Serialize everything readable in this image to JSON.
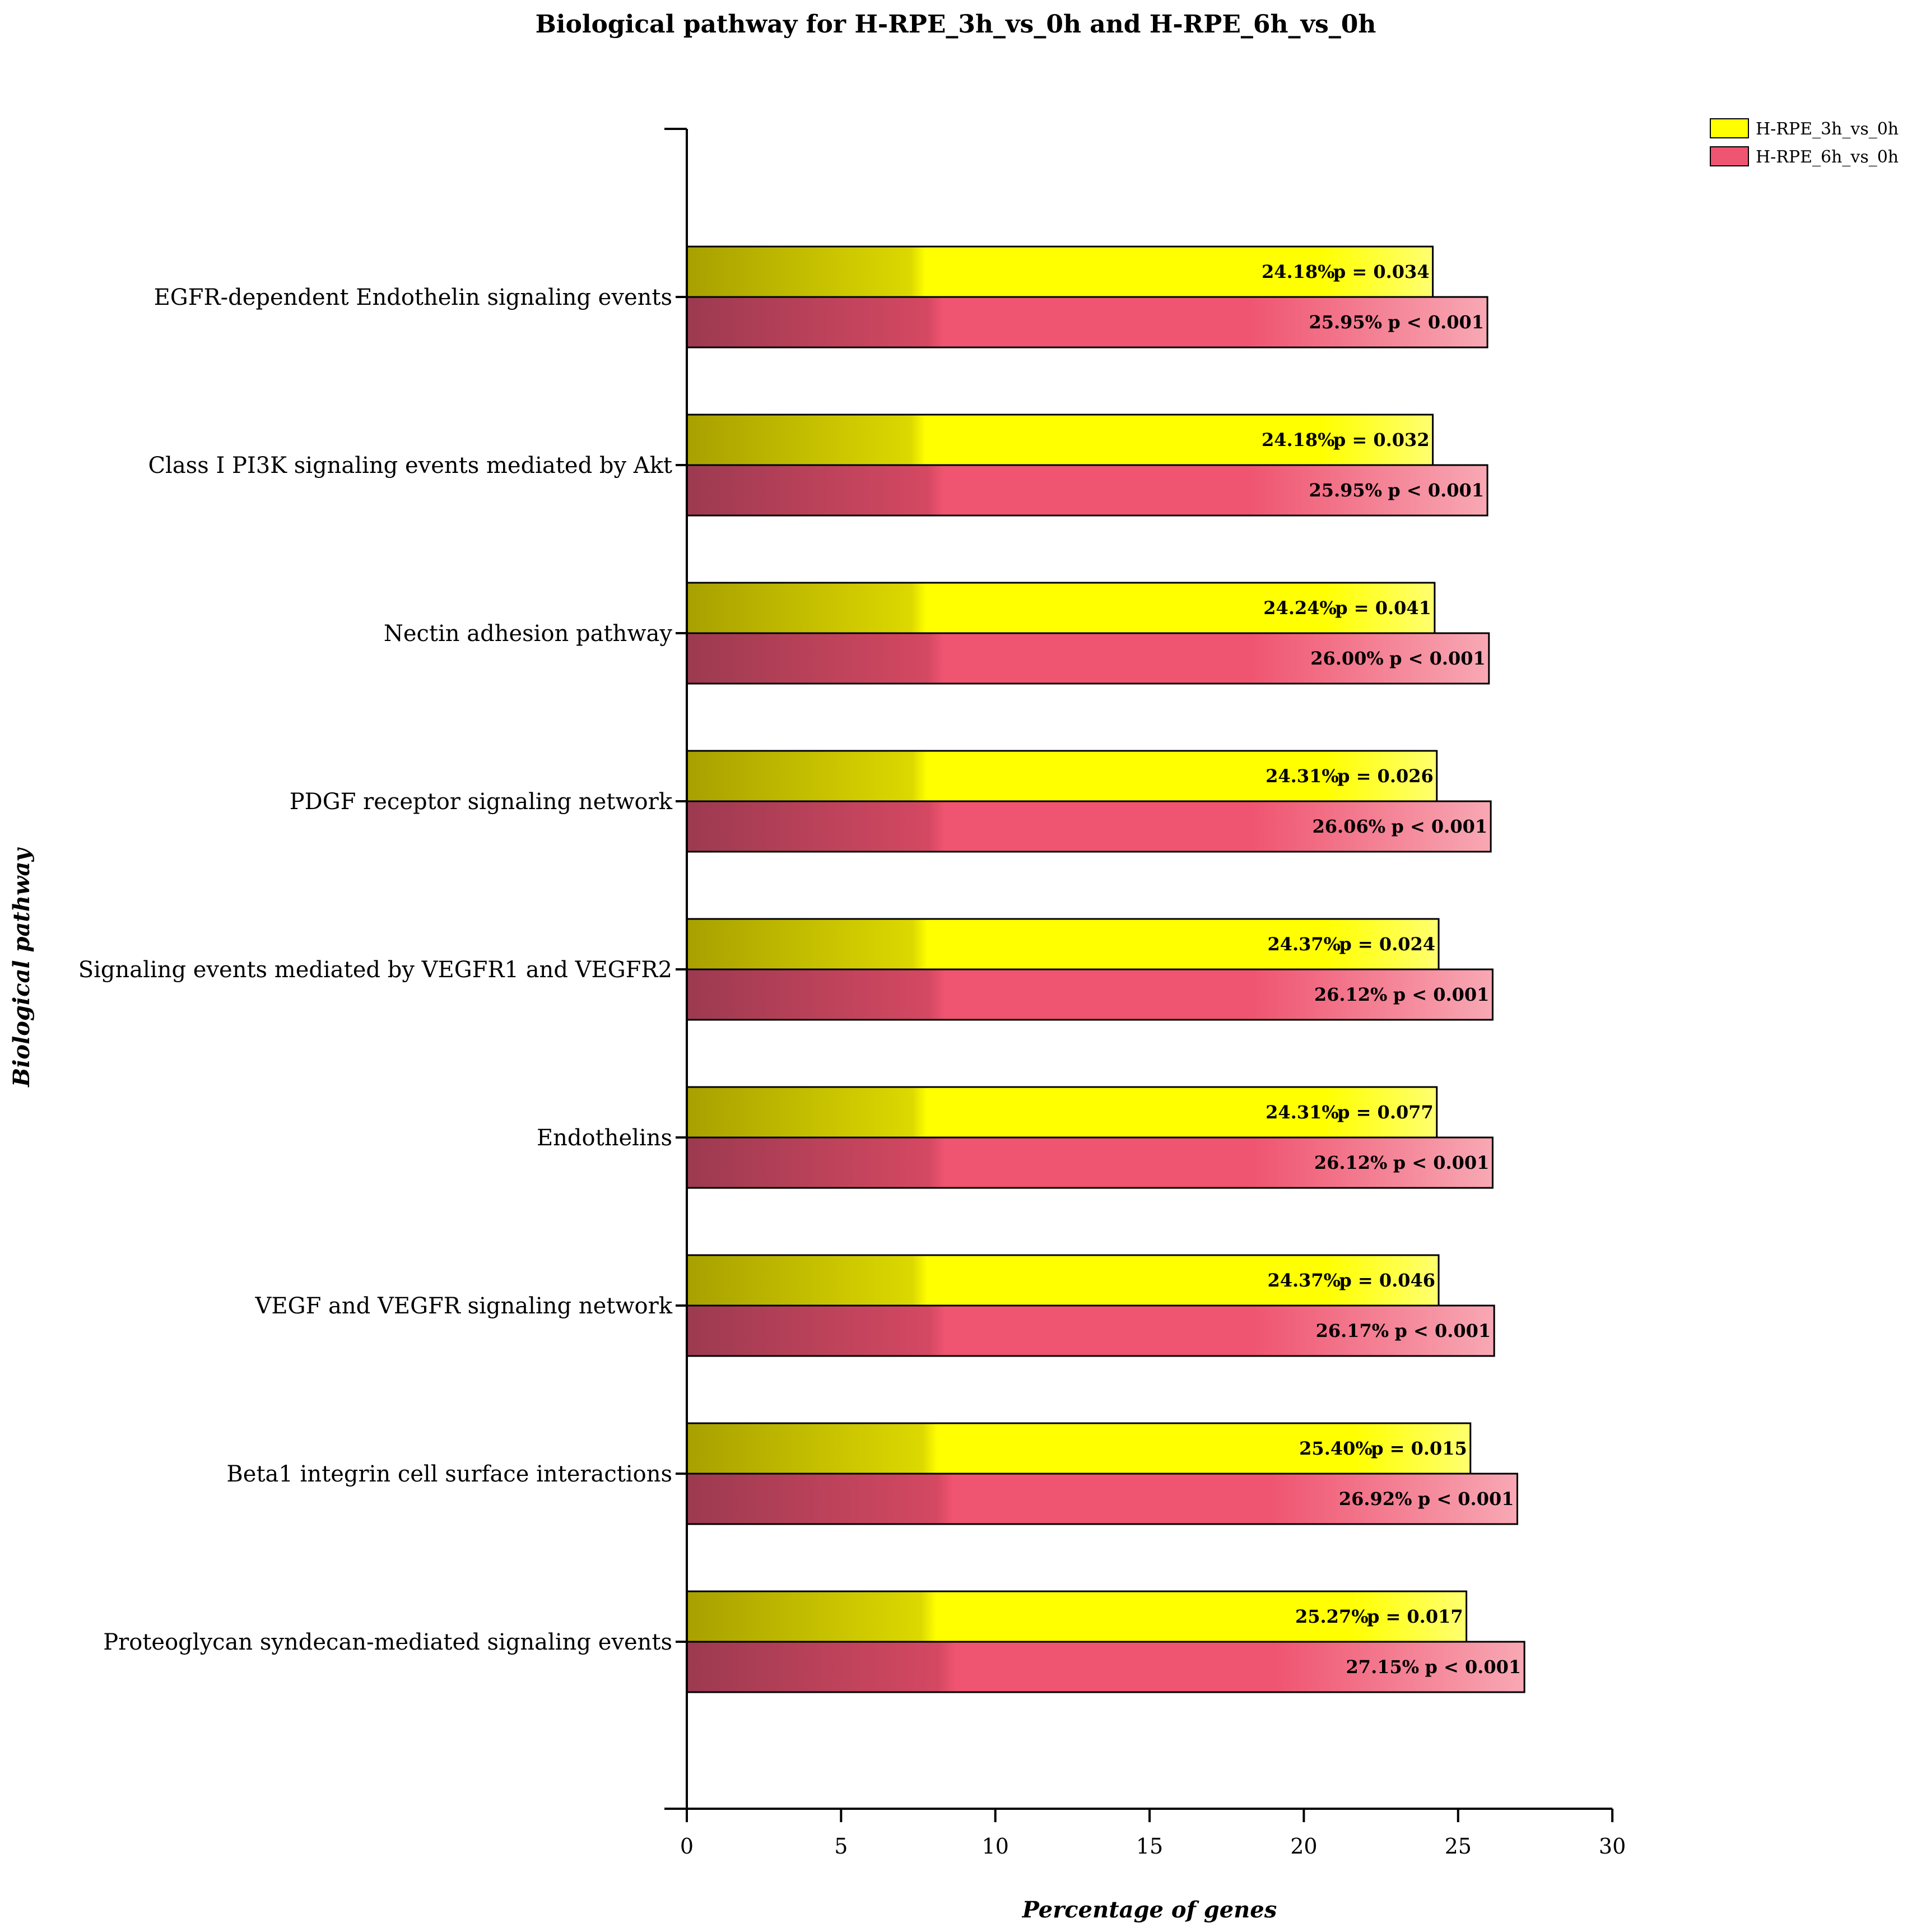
{
  "chart_data": {
    "type": "bar",
    "orientation": "horizontal",
    "title": "Biological pathway for H-RPE_3h_vs_0h and H-RPE_6h_vs_0h",
    "xlabel": "Percentage of genes",
    "ylabel": "Biological pathway",
    "xlim": [
      0,
      30
    ],
    "xticks": [
      0,
      5,
      10,
      15,
      20,
      25,
      30
    ],
    "legend_position": "top-right",
    "categories": [
      "EGFR-dependent Endothelin signaling events",
      "Class I PI3K signaling events mediated by Akt",
      "Nectin adhesion pathway",
      "PDGF receptor signaling network",
      "Signaling events mediated by VEGFR1 and VEGFR2",
      "Endothelins",
      "VEGF and VEGFR signaling network",
      "Beta1 integrin cell surface interactions",
      "Proteoglycan syndecan-mediated signaling events"
    ],
    "series": [
      {
        "name": "H-RPE_3h_vs_0h",
        "color": "#ffff00",
        "color_dark": "#a8a000",
        "values": [
          24.18,
          24.18,
          24.24,
          24.31,
          24.37,
          24.31,
          24.37,
          25.4,
          25.27
        ],
        "value_labels": [
          "24.18%",
          "24.18%",
          "24.24%",
          "24.31%",
          "24.37%",
          "24.31%",
          "24.37%",
          "25.40%",
          "25.27%"
        ],
        "p_labels": [
          "p = 0.034",
          "p = 0.032",
          "p = 0.041",
          "p = 0.026",
          "p = 0.024",
          "p = 0.077",
          "p = 0.046",
          "p = 0.015",
          "p = 0.017"
        ]
      },
      {
        "name": "H-RPE_6h_vs_0h",
        "color": "#ef5470",
        "color_dark": "#9c3a50",
        "color_light": "#f8a8b4",
        "values": [
          25.95,
          25.95,
          26.0,
          26.06,
          26.12,
          26.12,
          26.17,
          26.92,
          27.15
        ],
        "value_labels": [
          "25.95%",
          "25.95%",
          "26.00%",
          "26.06%",
          "26.12%",
          "26.12%",
          "26.17%",
          "26.92%",
          "27.15%"
        ],
        "p_labels": [
          "p < 0.001",
          "p < 0.001",
          "p < 0.001",
          "p < 0.001",
          "p < 0.001",
          "p < 0.001",
          "p < 0.001",
          "p < 0.001",
          "p < 0.001"
        ]
      }
    ]
  }
}
